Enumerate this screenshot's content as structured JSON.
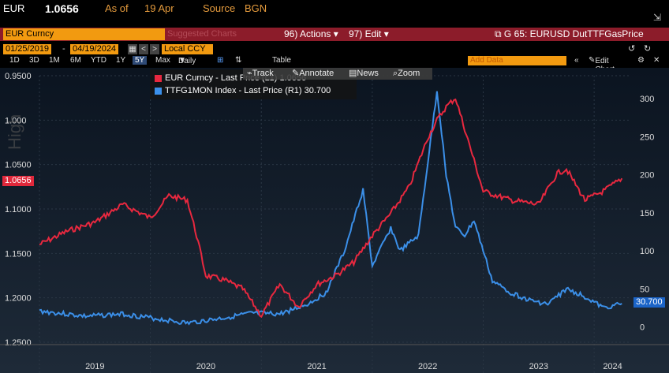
{
  "header": {
    "ticker": "EUR",
    "price": "1.0656",
    "as_of_label": "As of",
    "as_of_date": "19 Apr",
    "source_label": "Source",
    "source_value": "BGN"
  },
  "toolbar": {
    "security": "EUR Curncy",
    "suggested": "Suggested Charts",
    "actions": "96) Actions",
    "edit": "97) Edit",
    "chart_id": "G 65: EURUSD DutTTFGasPrice",
    "start_date": "01/25/2019",
    "end_date": "04/19/2024",
    "currency": "Local CCY",
    "add_data": "Add Data",
    "edit_chart": "Edit Chart"
  },
  "periods": [
    "1D",
    "3D",
    "1M",
    "6M",
    "YTD",
    "1Y",
    "5Y",
    "Max"
  ],
  "selected_period": "5Y",
  "frequency": "Daily",
  "table_label": "Table",
  "tools": {
    "track": "Track",
    "annotate": "Annotate",
    "news": "News",
    "zoom": "Zoom"
  },
  "tags": {
    "eur": "1.0656",
    "gas": "30.700"
  },
  "watermark": "High",
  "chart_data": {
    "type": "line",
    "title": "",
    "x_labels": [
      "2019",
      "2020",
      "2021",
      "2022",
      "2023",
      "2024"
    ],
    "left_axis_ticks": [
      "0.9500",
      "1.000",
      "1.0500",
      "1.1000",
      "1.1500",
      "1.2000",
      "1.2500"
    ],
    "left_axis_inverted": true,
    "right_axis_ticks": [
      "300",
      "250",
      "200",
      "150",
      "100",
      "50",
      "0"
    ],
    "grid": true,
    "legend_position": "top-left",
    "series": [
      {
        "name": "EUR Curncy - Last Price (L1) 1.0656",
        "axis": "left",
        "color": "#e8283f",
        "points": [
          [
            "2019-01",
            1.14
          ],
          [
            "2019-04",
            1.125
          ],
          [
            "2019-07",
            1.115
          ],
          [
            "2019-10",
            1.095
          ],
          [
            "2020-01",
            1.11
          ],
          [
            "2020-03",
            1.085
          ],
          [
            "2020-05",
            1.09
          ],
          [
            "2020-06",
            1.13
          ],
          [
            "2020-07",
            1.175
          ],
          [
            "2020-09",
            1.18
          ],
          [
            "2020-11",
            1.19
          ],
          [
            "2021-01",
            1.22
          ],
          [
            "2021-03",
            1.185
          ],
          [
            "2021-05",
            1.21
          ],
          [
            "2021-07",
            1.185
          ],
          [
            "2021-09",
            1.175
          ],
          [
            "2021-11",
            1.16
          ],
          [
            "2022-01",
            1.13
          ],
          [
            "2022-03",
            1.105
          ],
          [
            "2022-05",
            1.075
          ],
          [
            "2022-07",
            1.02
          ],
          [
            "2022-08",
            1.0
          ],
          [
            "2022-09",
            0.985
          ],
          [
            "2022-10",
            0.975
          ],
          [
            "2022-11",
            1.01
          ],
          [
            "2023-01",
            1.08
          ],
          [
            "2023-04",
            1.09
          ],
          [
            "2023-07",
            1.095
          ],
          [
            "2023-09",
            1.06
          ],
          [
            "2023-10",
            1.055
          ],
          [
            "2023-12",
            1.09
          ],
          [
            "2024-02",
            1.08
          ],
          [
            "2024-04",
            1.0656
          ]
        ]
      },
      {
        "name": "TTFG1MON Index - Last Price (R1) 30.700",
        "axis": "right",
        "color": "#3b8fe8",
        "points": [
          [
            "2019-01",
            21
          ],
          [
            "2019-06",
            14
          ],
          [
            "2019-10",
            17
          ],
          [
            "2020-01",
            12
          ],
          [
            "2020-05",
            5
          ],
          [
            "2020-09",
            12
          ],
          [
            "2020-12",
            18
          ],
          [
            "2021-03",
            17
          ],
          [
            "2021-06",
            30
          ],
          [
            "2021-08",
            45
          ],
          [
            "2021-10",
            100
          ],
          [
            "2021-12",
            180
          ],
          [
            "2022-01",
            80
          ],
          [
            "2022-03",
            130
          ],
          [
            "2022-04",
            100
          ],
          [
            "2022-06",
            120
          ],
          [
            "2022-08",
            310
          ],
          [
            "2022-09",
            200
          ],
          [
            "2022-10",
            130
          ],
          [
            "2022-11",
            120
          ],
          [
            "2022-12",
            140
          ],
          [
            "2023-02",
            60
          ],
          [
            "2023-04",
            45
          ],
          [
            "2023-06",
            35
          ],
          [
            "2023-08",
            30
          ],
          [
            "2023-10",
            50
          ],
          [
            "2023-12",
            40
          ],
          [
            "2024-02",
            25
          ],
          [
            "2024-04",
            30.7
          ]
        ]
      }
    ]
  }
}
